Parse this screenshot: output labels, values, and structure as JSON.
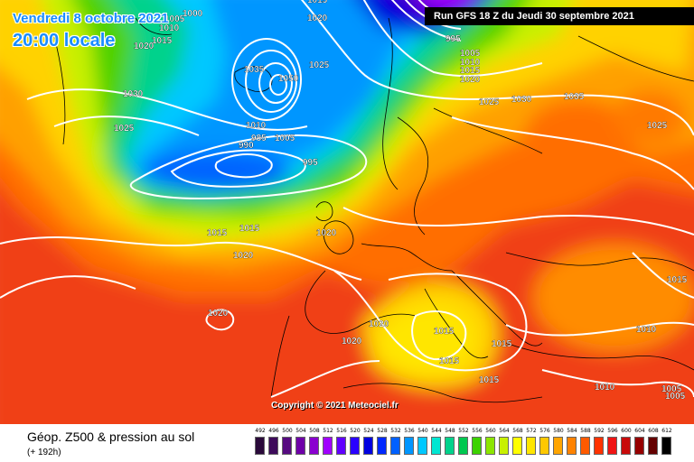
{
  "header": {
    "date_label": "Vendredi 8 octobre 2021",
    "time_label": "20:00 locale",
    "run_label": "Run GFS 18 Z du Jeudi 30 septembre 2021"
  },
  "copyright": "Copyright © 2021 Meteociel.fr",
  "footer": {
    "title": "Géop. Z500 & pression au sol",
    "subtitle": "(+ 192h)"
  },
  "legend": {
    "values": [
      "492",
      "496",
      "500",
      "504",
      "508",
      "512",
      "516",
      "520",
      "524",
      "528",
      "532",
      "536",
      "540",
      "544",
      "548",
      "552",
      "556",
      "560",
      "564",
      "568",
      "572",
      "576",
      "580",
      "584",
      "588",
      "592",
      "596",
      "600",
      "604",
      "608",
      "612"
    ],
    "colors": [
      "#2a0a3a",
      "#3d0a5a",
      "#560a80",
      "#6e00a8",
      "#8a00d0",
      "#a000ff",
      "#6000ff",
      "#2a00ff",
      "#0000e0",
      "#0028ff",
      "#0060ff",
      "#0096ff",
      "#00c8ff",
      "#00e6d2",
      "#00d28c",
      "#00c850",
      "#3cd200",
      "#8ce600",
      "#c8f000",
      "#ffff00",
      "#ffe600",
      "#ffc800",
      "#ffa500",
      "#ff8200",
      "#ff5a00",
      "#ff3200",
      "#f01414",
      "#c80a0a",
      "#960000",
      "#640000",
      "#000000"
    ]
  },
  "isobar_labels": [
    {
      "text": "1015"
    },
    {
      "text": "1010"
    },
    {
      "text": "1005"
    },
    {
      "text": "1000"
    },
    {
      "text": "1020"
    },
    {
      "text": "1015"
    },
    {
      "text": "995"
    },
    {
      "text": "1005"
    },
    {
      "text": "1010"
    },
    {
      "text": "1015"
    },
    {
      "text": "1020"
    },
    {
      "text": "1025"
    },
    {
      "text": "1030"
    },
    {
      "text": "1035"
    },
    {
      "text": "1025"
    },
    {
      "text": "1025"
    },
    {
      "text": "1030"
    },
    {
      "text": "1025"
    },
    {
      "text": "1020"
    },
    {
      "text": "1035"
    },
    {
      "text": "1050"
    },
    {
      "text": "1010"
    },
    {
      "text": "1005"
    },
    {
      "text": "995"
    },
    {
      "text": "990"
    },
    {
      "text": "985"
    },
    {
      "text": "1015"
    },
    {
      "text": "1015"
    },
    {
      "text": "1020"
    },
    {
      "text": "1020"
    },
    {
      "text": "1020"
    },
    {
      "text": "1020"
    },
    {
      "text": "1020"
    },
    {
      "text": "1015"
    },
    {
      "text": "1015"
    },
    {
      "text": "1015"
    },
    {
      "text": "1015"
    },
    {
      "text": "1015"
    },
    {
      "text": "1010"
    },
    {
      "text": "1010"
    },
    {
      "text": "1005"
    },
    {
      "text": "1005"
    }
  ]
}
